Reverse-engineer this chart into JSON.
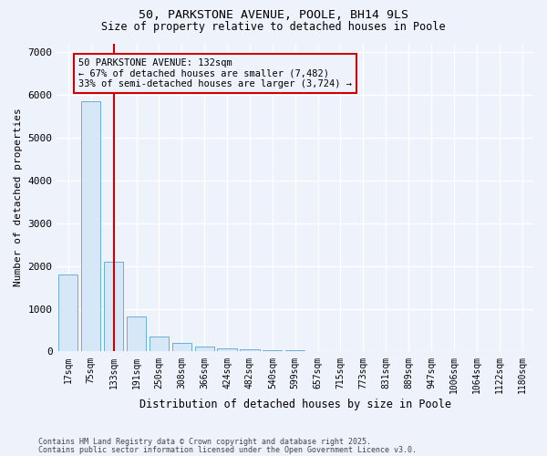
{
  "title_line1": "50, PARKSTONE AVENUE, POOLE, BH14 9LS",
  "title_line2": "Size of property relative to detached houses in Poole",
  "xlabel": "Distribution of detached houses by size in Poole",
  "ylabel": "Number of detached properties",
  "bar_labels": [
    "17sqm",
    "75sqm",
    "133sqm",
    "191sqm",
    "250sqm",
    "308sqm",
    "366sqm",
    "424sqm",
    "482sqm",
    "540sqm",
    "599sqm",
    "657sqm",
    "715sqm",
    "773sqm",
    "831sqm",
    "889sqm",
    "947sqm",
    "1006sqm",
    "1064sqm",
    "1122sqm",
    "1180sqm"
  ],
  "bar_values": [
    1800,
    5850,
    2100,
    820,
    340,
    200,
    110,
    75,
    60,
    40,
    30,
    20,
    10,
    5,
    3,
    2,
    1,
    1,
    1,
    1,
    1
  ],
  "bar_color": "#d6e8f7",
  "bar_edge_color": "#6aaed6",
  "marker_index": 2,
  "marker_color": "#cc0000",
  "annotation_text": "50 PARKSTONE AVENUE: 132sqm\n← 67% of detached houses are smaller (7,482)\n33% of semi-detached houses are larger (3,724) →",
  "annotation_box_color": "#cc0000",
  "ylim": [
    0,
    7200
  ],
  "yticks": [
    0,
    1000,
    2000,
    3000,
    4000,
    5000,
    6000,
    7000
  ],
  "background_color": "#eef2fb",
  "grid_color": "#ffffff",
  "footnote1": "Contains HM Land Registry data © Crown copyright and database right 2025.",
  "footnote2": "Contains public sector information licensed under the Open Government Licence v3.0."
}
